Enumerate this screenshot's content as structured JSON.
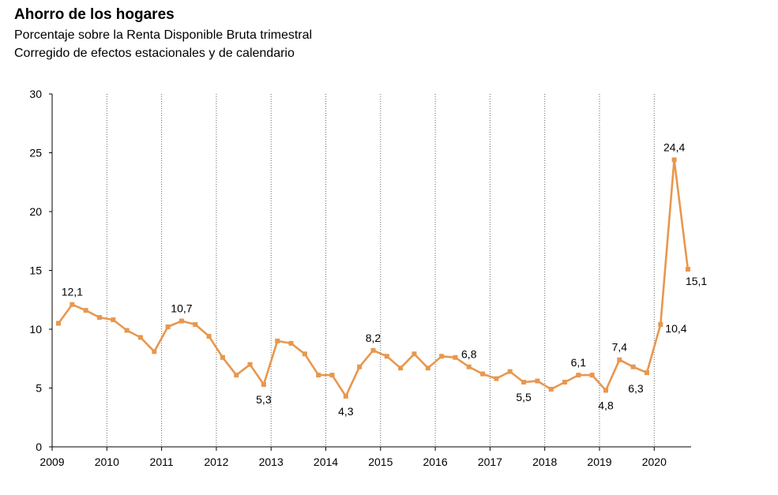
{
  "title": "Ahorro de los hogares",
  "subtitle": "Porcentaje sobre la Renta Disponible Bruta trimestral",
  "subtitle2": "Corregido de efectos estacionales y de calendario",
  "colors": {
    "line": "#E8974F",
    "axis": "#000000",
    "grid": "#666666"
  },
  "chart_data": {
    "type": "line",
    "title": "Ahorro de los hogares",
    "subtitle": "Porcentaje sobre la Renta Disponible Bruta trimestral",
    "xlabel": "",
    "ylabel": "",
    "ylim": [
      0,
      30
    ],
    "yticks": [
      0,
      5,
      10,
      15,
      20,
      25,
      30
    ],
    "year_ticks": [
      "2009",
      "2010",
      "2011",
      "2012",
      "2013",
      "2014",
      "2015",
      "2016",
      "2017",
      "2018",
      "2019",
      "2020"
    ],
    "grid": "vertical dotted lines at each year",
    "x": [
      "2009T1",
      "2009T2",
      "2009T3",
      "2009T4",
      "2010T1",
      "2010T2",
      "2010T3",
      "2010T4",
      "2011T1",
      "2011T2",
      "2011T3",
      "2011T4",
      "2012T1",
      "2012T2",
      "2012T3",
      "2012T4",
      "2013T1",
      "2013T2",
      "2013T3",
      "2013T4",
      "2014T1",
      "2014T2",
      "2014T3",
      "2014T4",
      "2015T1",
      "2015T2",
      "2015T3",
      "2015T4",
      "2016T1",
      "2016T2",
      "2016T3",
      "2016T4",
      "2017T1",
      "2017T2",
      "2017T3",
      "2017T4",
      "2018T1",
      "2018T2",
      "2018T3",
      "2018T4",
      "2019T1",
      "2019T2",
      "2019T3",
      "2019T4",
      "2020T1",
      "2020T2",
      "2020T3"
    ],
    "values": [
      10.5,
      12.1,
      11.6,
      11.0,
      10.8,
      9.9,
      9.3,
      8.1,
      10.2,
      10.7,
      10.4,
      9.4,
      7.6,
      6.1,
      7.0,
      5.3,
      9.0,
      8.8,
      7.9,
      6.1,
      6.1,
      4.3,
      6.8,
      8.2,
      7.7,
      6.7,
      7.9,
      6.7,
      7.7,
      7.6,
      6.8,
      6.2,
      5.8,
      6.4,
      5.5,
      5.6,
      4.9,
      5.5,
      6.1,
      6.1,
      4.8,
      7.4,
      6.8,
      6.3,
      10.4,
      24.4,
      15.1
    ],
    "data_labels": [
      {
        "index": 1,
        "text": "12,1",
        "pos": "above"
      },
      {
        "index": 9,
        "text": "10,7",
        "pos": "above"
      },
      {
        "index": 15,
        "text": "5,3",
        "pos": "below"
      },
      {
        "index": 21,
        "text": "4,3",
        "pos": "below"
      },
      {
        "index": 23,
        "text": "8,2",
        "pos": "above"
      },
      {
        "index": 30,
        "text": "6,8",
        "pos": "above"
      },
      {
        "index": 34,
        "text": "5,5",
        "pos": "below"
      },
      {
        "index": 38,
        "text": "6,1",
        "pos": "above"
      },
      {
        "index": 40,
        "text": "4,8",
        "pos": "below"
      },
      {
        "index": 41,
        "text": "7,4",
        "pos": "above"
      },
      {
        "index": 43,
        "text": "6,3",
        "pos": "below-left"
      },
      {
        "index": 44,
        "text": "10,4",
        "pos": "right"
      },
      {
        "index": 45,
        "text": "24,4",
        "pos": "above"
      },
      {
        "index": 46,
        "text": "15,1",
        "pos": "below-right"
      }
    ]
  }
}
